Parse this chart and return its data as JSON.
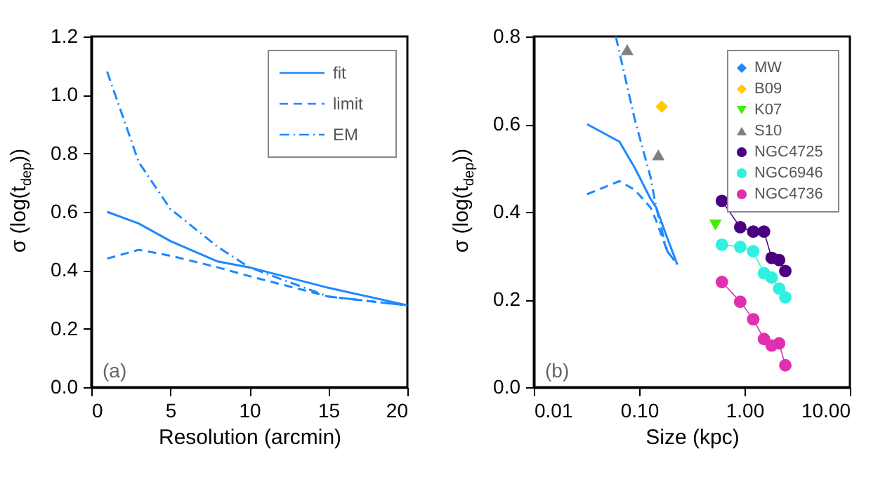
{
  "chart_data": [
    {
      "type": "line",
      "xlabel": "Resolution (arcmin)",
      "ylabel": "σ (log(t$_{dep}$))",
      "xlim": [
        0,
        20
      ],
      "ylim": [
        0,
        1.2
      ],
      "xticks": [
        0,
        5,
        10,
        15,
        20
      ],
      "yticks": [
        {
          "value": 0,
          "label": "0.0"
        },
        {
          "value": 0.2,
          "label": "0.2"
        },
        {
          "value": 0.4,
          "label": "0.4"
        },
        {
          "value": 0.6,
          "label": "0.6"
        },
        {
          "value": 0.8,
          "label": "0.8"
        },
        {
          "value": 1,
          "label": "1.0"
        },
        {
          "value": 1.2,
          "label": "1.2"
        }
      ],
      "grid": false,
      "legend": "top right",
      "annotations": [
        "(a)"
      ],
      "series": [
        {
          "name": "fit",
          "color": "#1e88ff",
          "line_style": "solid",
          "x": [
            1,
            3,
            5,
            8,
            10,
            15,
            20
          ],
          "values": [
            0.6,
            0.56,
            0.5,
            0.43,
            0.41,
            0.34,
            0.28
          ]
        },
        {
          "name": "limit",
          "color": "#1e88ff",
          "line_style": "dashed",
          "x": [
            1,
            3,
            5,
            8,
            10,
            15,
            20
          ],
          "values": [
            0.44,
            0.47,
            0.45,
            0.41,
            0.38,
            0.31,
            0.28
          ]
        },
        {
          "name": "EM",
          "color": "#1e88ff",
          "line_style": "dashdot",
          "x": [
            1,
            3,
            5,
            8,
            10,
            12,
            14,
            15,
            20
          ],
          "values": [
            1.08,
            0.77,
            0.61,
            0.48,
            0.41,
            0.37,
            0.33,
            0.31,
            0.28
          ]
        }
      ]
    },
    {
      "type": "scatter",
      "xlabel": "Size (kpc)",
      "ylabel": "σ (log(t$_{dep}$))",
      "log": "x",
      "xlim": [
        0.01,
        10
      ],
      "ylim": [
        0,
        0.8
      ],
      "xticks": [
        {
          "value": 0.01,
          "label": "0.01"
        },
        {
          "value": 0.1,
          "label": "0.10"
        },
        {
          "value": 1,
          "label": "1.00"
        },
        {
          "value": 10,
          "label": "10.00"
        }
      ],
      "yticks": [
        {
          "value": 0,
          "label": "0.0"
        },
        {
          "value": 0.2,
          "label": "0.2"
        },
        {
          "value": 0.4,
          "label": "0.4"
        },
        {
          "value": 0.6,
          "label": "0.6"
        },
        {
          "value": 0.8,
          "label": "0.8"
        }
      ],
      "grid": false,
      "legend": "top right",
      "annotations": [
        "(b)"
      ],
      "series": [
        {
          "type": "line",
          "color": "#1e88ff",
          "line_style": "solid",
          "x": [
            0.032,
            0.065,
            0.091,
            0.128,
            0.145,
            0.185,
            0.23
          ],
          "values": [
            0.6,
            0.56,
            0.5,
            0.43,
            0.41,
            0.34,
            0.28
          ]
        },
        {
          "type": "line",
          "color": "#1e88ff",
          "line_style": "dashed",
          "x": [
            0.032,
            0.065,
            0.091,
            0.128,
            0.145,
            0.185,
            0.23
          ],
          "values": [
            0.44,
            0.47,
            0.45,
            0.41,
            0.38,
            0.31,
            0.28
          ]
        },
        {
          "type": "line",
          "color": "#1e88ff",
          "line_style": "dashdot",
          "x": [
            0.06,
            0.091,
            0.128,
            0.145,
            0.16,
            0.175,
            0.185,
            0.23
          ],
          "values": [
            0.8,
            0.61,
            0.48,
            0.41,
            0.37,
            0.33,
            0.31,
            0.28
          ]
        },
        {
          "name": "MW",
          "color": "#1e88ff",
          "marker": "diamond"
        },
        {
          "name": "B09",
          "color": "#ffcc00",
          "marker": "diamond",
          "x": [
            0.164
          ],
          "values": [
            0.64
          ]
        },
        {
          "name": "K07",
          "color": "#44ee00",
          "marker": "triangle-down",
          "x": [
            0.53
          ],
          "values": [
            0.37
          ]
        },
        {
          "name": "S10",
          "color": "#808080",
          "marker": "triangle",
          "x": [
            0.077,
            0.152
          ],
          "values": [
            0.77,
            0.53
          ]
        },
        {
          "name": "NGC4725",
          "type": "line",
          "color": "#4b0082",
          "marker": "circle",
          "x": [
            0.61,
            0.91,
            1.21,
            1.53,
            1.81,
            2.13,
            2.44
          ],
          "values": [
            0.425,
            0.365,
            0.355,
            0.355,
            0.295,
            0.29,
            0.265
          ]
        },
        {
          "name": "NGC6946",
          "type": "line",
          "color": "#30f0e0",
          "marker": "circle",
          "x": [
            0.61,
            0.91,
            1.21,
            1.53,
            1.81,
            2.13,
            2.44
          ],
          "values": [
            0.325,
            0.32,
            0.31,
            0.26,
            0.25,
            0.225,
            0.205
          ]
        },
        {
          "name": "NGC4736",
          "type": "line",
          "color": "#e030b0",
          "marker": "circle",
          "x": [
            0.61,
            0.91,
            1.21,
            1.53,
            1.81,
            2.13,
            2.44
          ],
          "values": [
            0.24,
            0.195,
            0.155,
            0.11,
            0.095,
            0.1,
            0.05
          ]
        }
      ]
    }
  ]
}
